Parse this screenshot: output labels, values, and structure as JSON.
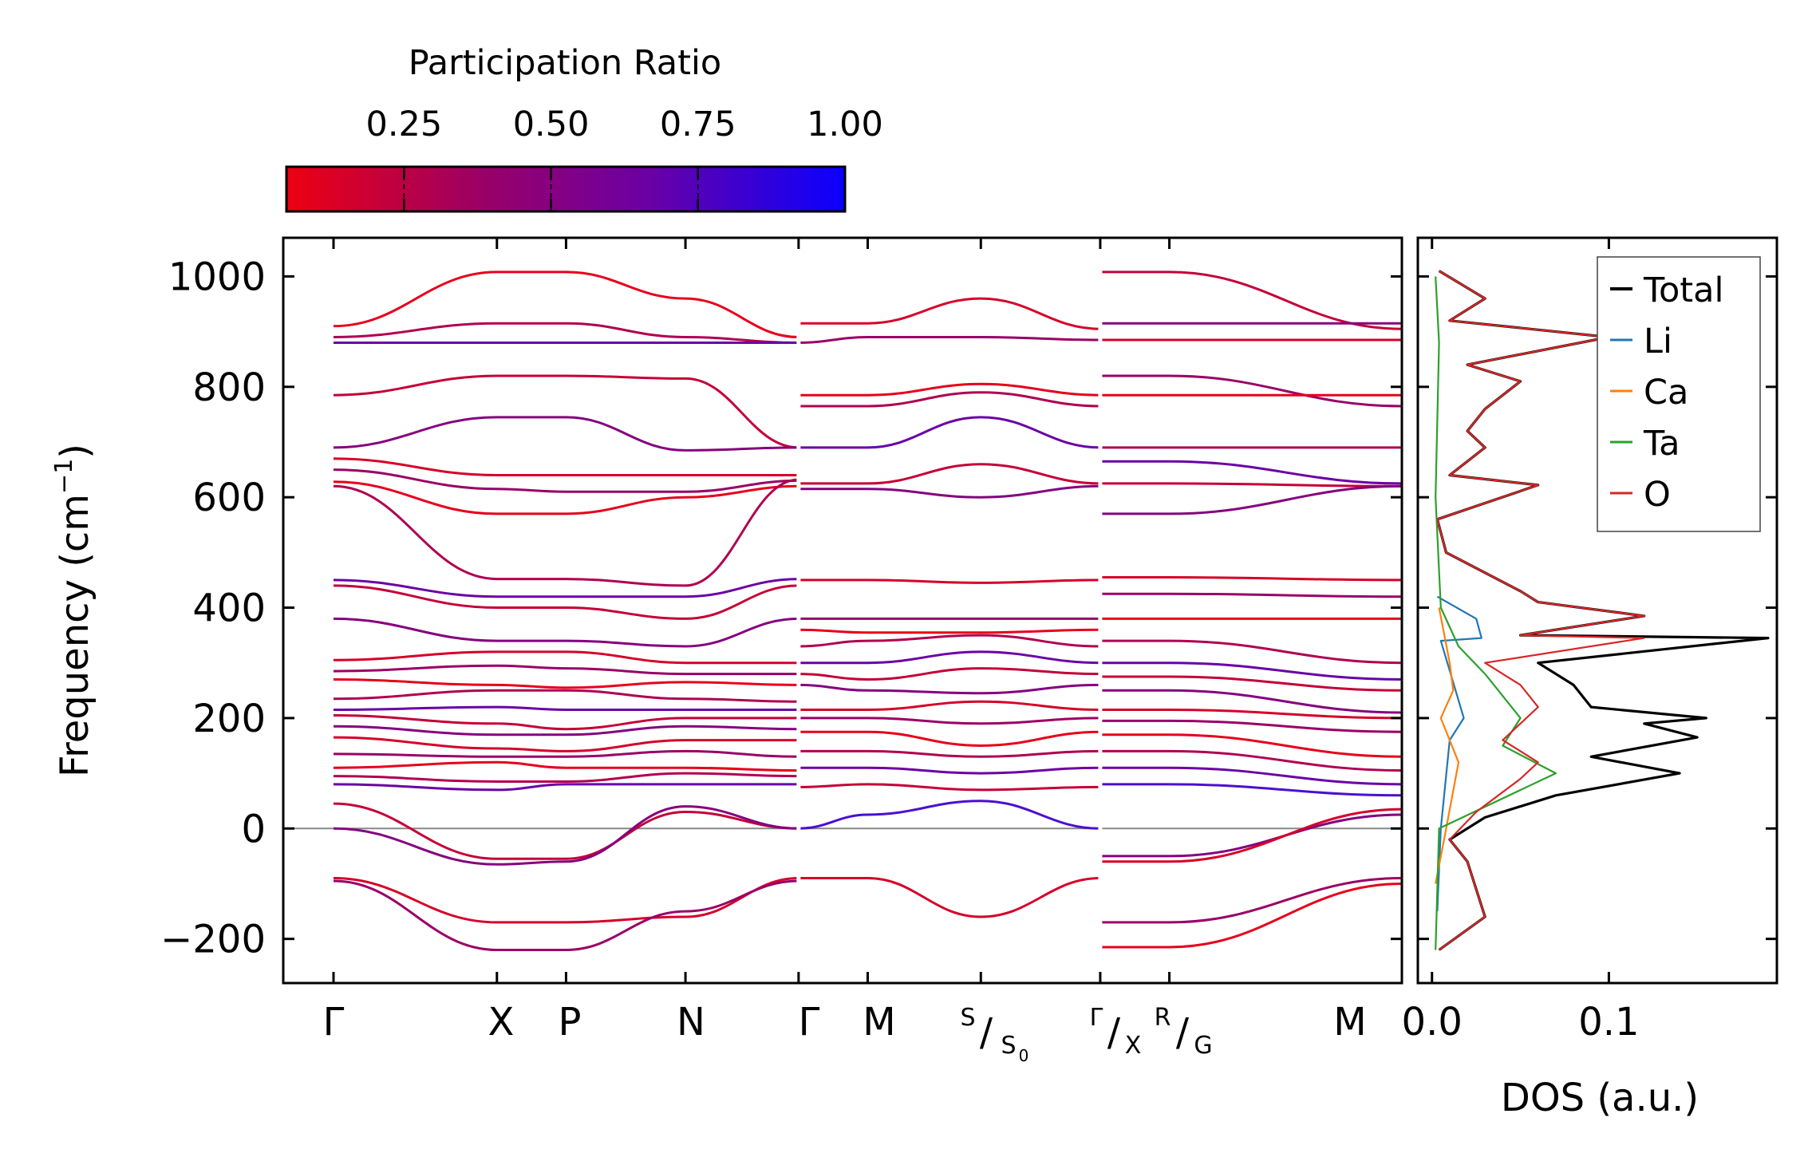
{
  "colorbar": {
    "title": "Participation Ratio",
    "ticks": [
      "0.25",
      "0.50",
      "0.75",
      "1.00"
    ],
    "tick_values": [
      0.25,
      0.5,
      0.75,
      1.0
    ],
    "range": [
      0.05,
      1.0
    ],
    "colors": [
      "#ee0011",
      "#9a0066",
      "#6a00a5",
      "#0a00ff"
    ]
  },
  "chart_data": [
    {
      "type": "line",
      "title": "",
      "ylabel": "Frequency (cm",
      "ylabel_sup": "−1",
      "ylabel_end": ")",
      "ylim": [
        -280,
        1070
      ],
      "yticks": [
        -200,
        0,
        200,
        400,
        600,
        800,
        1000
      ],
      "ytick_labels": [
        "−200",
        "0",
        "200",
        "400",
        "600",
        "800",
        "1000"
      ],
      "xlim": [
        -0.2,
        8.7
      ],
      "path_labels": {
        "gamma1": "Γ",
        "x": "X",
        "p": "P",
        "n": "N",
        "gamma2": "Γ",
        "m1": "M",
        "s_sup": "S",
        "s_slash": "/",
        "s_main": "S",
        "s_sub": "0",
        "gx_sup": "Γ",
        "gx_slash": "/",
        "gx_main": "X",
        "rg_sup": "R",
        "rg_slash": "/",
        "rg_main": "G",
        "m2": "M"
      },
      "path_positions": [
        0.2,
        1.5,
        2.05,
        3.0,
        3.9,
        4.45,
        5.35,
        6.3,
        6.85,
        8.7
      ],
      "segment_breaks": [
        3.9,
        6.3
      ],
      "zero_line": 0,
      "bands": {
        "note": "Phonon dispersion branches, approximate frequencies (cm^-1) at path nodes Gamma,X,P,N,Gamma | M,S,Gamma | X/R,M; color encodes participation ratio",
        "segments": [
          {
            "x": [
              0.2,
              1.5,
              2.05,
              3.0,
              3.9
            ],
            "branches": [
              [
                910,
                1008,
                1008,
                960,
                890
              ],
              [
                890,
                915,
                915,
                890,
                880
              ],
              [
                880,
                880,
                880,
                880,
                880
              ],
              [
                785,
                820,
                820,
                815,
                690
              ],
              [
                690,
                745,
                745,
                685,
                690
              ],
              [
                670,
                640,
                640,
                640,
                640
              ],
              [
                650,
                615,
                610,
                610,
                630
              ],
              [
                628,
                570,
                570,
                600,
                620
              ],
              [
                620,
                452,
                452,
                440,
                632
              ],
              [
                450,
                420,
                420,
                420,
                452
              ],
              [
                440,
                400,
                400,
                380,
                440
              ],
              [
                380,
                340,
                340,
                330,
                380
              ],
              [
                305,
                320,
                320,
                300,
                300
              ],
              [
                285,
                295,
                290,
                280,
                280
              ],
              [
                270,
                260,
                255,
                265,
                260
              ],
              [
                235,
                250,
                250,
                235,
                230
              ],
              [
                215,
                220,
                215,
                215,
                215
              ],
              [
                205,
                190,
                180,
                200,
                200
              ],
              [
                185,
                170,
                170,
                185,
                180
              ],
              [
                165,
                145,
                140,
                160,
                160
              ],
              [
                135,
                130,
                130,
                140,
                130
              ],
              [
                110,
                120,
                110,
                110,
                105
              ],
              [
                95,
                85,
                85,
                100,
                95
              ],
              [
                80,
                70,
                80,
                80,
                80
              ],
              [
                45,
                -55,
                -55,
                30,
                0
              ],
              [
                0,
                -65,
                -60,
                40,
                0
              ],
              [
                -90,
                -170,
                -170,
                -160,
                -90
              ],
              [
                -95,
                -220,
                -220,
                -150,
                -95
              ]
            ]
          },
          {
            "x": [
              3.9,
              4.45,
              5.35,
              6.3
            ],
            "branches": [
              [
                915,
                915,
                960,
                905
              ],
              [
                880,
                890,
                890,
                885
              ],
              [
                785,
                785,
                805,
                785
              ],
              [
                765,
                765,
                790,
                765
              ],
              [
                690,
                690,
                745,
                690
              ],
              [
                625,
                625,
                660,
                625
              ],
              [
                615,
                615,
                600,
                620
              ],
              [
                450,
                450,
                445,
                450
              ],
              [
                380,
                380,
                380,
                380
              ],
              [
                360,
                355,
                355,
                360
              ],
              [
                330,
                340,
                350,
                330
              ],
              [
                300,
                300,
                320,
                300
              ],
              [
                280,
                270,
                290,
                280
              ],
              [
                260,
                250,
                245,
                260
              ],
              [
                215,
                215,
                230,
                215
              ],
              [
                200,
                200,
                190,
                200
              ],
              [
                175,
                175,
                150,
                175
              ],
              [
                140,
                140,
                130,
                140
              ],
              [
                110,
                110,
                100,
                110
              ],
              [
                75,
                80,
                70,
                75
              ],
              [
                0,
                25,
                50,
                0
              ],
              [
                -90,
                -90,
                -160,
                -90
              ]
            ]
          },
          {
            "x": [
              6.3,
              6.85,
              8.7
            ],
            "branches": [
              [
                1008,
                1008,
                905
              ],
              [
                915,
                915,
                915
              ],
              [
                885,
                885,
                885
              ],
              [
                820,
                820,
                765
              ],
              [
                785,
                785,
                785
              ],
              [
                690,
                690,
                690
              ],
              [
                665,
                665,
                625
              ],
              [
                625,
                625,
                620
              ],
              [
                570,
                570,
                620
              ],
              [
                455,
                455,
                450
              ],
              [
                425,
                425,
                420
              ],
              [
                380,
                380,
                380
              ],
              [
                340,
                340,
                300
              ],
              [
                300,
                300,
                270
              ],
              [
                275,
                275,
                250
              ],
              [
                250,
                250,
                210
              ],
              [
                215,
                215,
                200
              ],
              [
                195,
                195,
                175
              ],
              [
                170,
                170,
                130
              ],
              [
                140,
                140,
                105
              ],
              [
                110,
                110,
                80
              ],
              [
                80,
                80,
                60
              ],
              [
                -50,
                -50,
                25
              ],
              [
                -60,
                -60,
                35
              ],
              [
                -170,
                -170,
                -90
              ],
              [
                -215,
                -215,
                -100
              ]
            ]
          }
        ]
      }
    },
    {
      "type": "line",
      "xlabel": "DOS (a.u.)",
      "xlim": [
        -0.008,
        0.195
      ],
      "xticks": [
        0.0,
        0.1
      ],
      "xtick_labels": [
        "0.0",
        "0.1"
      ],
      "ylim": [
        -280,
        1070
      ],
      "legend": {
        "position": "top-right",
        "entries": [
          "Total",
          "Li",
          "Ca",
          "Ta",
          "O"
        ]
      },
      "series": [
        {
          "name": "Total",
          "color": "#000000",
          "points": [
            [
              0.004,
              -220
            ],
            [
              0.03,
              -160
            ],
            [
              0.02,
              -60
            ],
            [
              0.01,
              -20
            ],
            [
              0.03,
              20
            ],
            [
              0.07,
              60
            ],
            [
              0.14,
              100
            ],
            [
              0.09,
              130
            ],
            [
              0.15,
              165
            ],
            [
              0.12,
              190
            ],
            [
              0.155,
              200
            ],
            [
              0.09,
              220
            ],
            [
              0.08,
              260
            ],
            [
              0.06,
              300
            ],
            [
              0.19,
              345
            ],
            [
              0.05,
              350
            ],
            [
              0.12,
              385
            ],
            [
              0.06,
              410
            ],
            [
              0.05,
              430
            ],
            [
              0.008,
              500
            ],
            [
              0.003,
              560
            ],
            [
              0.06,
              622
            ],
            [
              0.01,
              640
            ],
            [
              0.03,
              690
            ],
            [
              0.02,
              720
            ],
            [
              0.03,
              760
            ],
            [
              0.05,
              810
            ],
            [
              0.02,
              840
            ],
            [
              0.1,
              890
            ],
            [
              0.01,
              920
            ],
            [
              0.03,
              960
            ],
            [
              0.004,
              1010
            ]
          ]
        },
        {
          "name": "Li",
          "color": "#1f77b4",
          "points": [
            [
              0.003,
              -150
            ],
            [
              0.005,
              0
            ],
            [
              0.01,
              160
            ],
            [
              0.018,
              200
            ],
            [
              0.025,
              380
            ],
            [
              0.028,
              345
            ],
            [
              0.005,
              340
            ],
            [
              0.003,
              420
            ]
          ]
        },
        {
          "name": "Ca",
          "color": "#ff7f0e",
          "points": [
            [
              0.002,
              -100
            ],
            [
              0.008,
              0
            ],
            [
              0.015,
              120
            ],
            [
              0.005,
              200
            ],
            [
              0.012,
              250
            ],
            [
              0.01,
              300
            ],
            [
              0.004,
              400
            ]
          ]
        },
        {
          "name": "Ta",
          "color": "#2ca02c",
          "points": [
            [
              0.002,
              -220
            ],
            [
              0.004,
              0
            ],
            [
              0.07,
              100
            ],
            [
              0.04,
              150
            ],
            [
              0.05,
              200
            ],
            [
              0.03,
              280
            ],
            [
              0.015,
              330
            ],
            [
              0.005,
              400
            ],
            [
              0.002,
              600
            ],
            [
              0.004,
              880
            ],
            [
              0.002,
              1000
            ]
          ]
        },
        {
          "name": "O",
          "color": "#d62728",
          "points": [
            [
              0.004,
              -220
            ],
            [
              0.03,
              -160
            ],
            [
              0.02,
              -60
            ],
            [
              0.01,
              -20
            ],
            [
              0.025,
              30
            ],
            [
              0.05,
              90
            ],
            [
              0.06,
              120
            ],
            [
              0.04,
              160
            ],
            [
              0.06,
              220
            ],
            [
              0.05,
              260
            ],
            [
              0.03,
              300
            ],
            [
              0.12,
              345
            ],
            [
              0.05,
              350
            ],
            [
              0.12,
              385
            ],
            [
              0.06,
              410
            ],
            [
              0.05,
              430
            ],
            [
              0.008,
              500
            ],
            [
              0.003,
              560
            ],
            [
              0.06,
              622
            ],
            [
              0.01,
              640
            ],
            [
              0.03,
              690
            ],
            [
              0.02,
              720
            ],
            [
              0.03,
              760
            ],
            [
              0.05,
              810
            ],
            [
              0.02,
              840
            ],
            [
              0.1,
              890
            ],
            [
              0.01,
              920
            ],
            [
              0.03,
              960
            ],
            [
              0.004,
              1010
            ]
          ]
        }
      ]
    }
  ]
}
